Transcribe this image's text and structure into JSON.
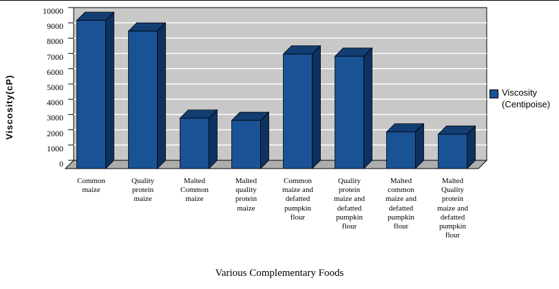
{
  "chart_data": {
    "type": "bar",
    "style": "3d-column",
    "title": "",
    "xlabel": "Various Complementary Foods",
    "ylabel": "Viscosity(cP)",
    "ylim": [
      0,
      10000
    ],
    "ytick_step": 1000,
    "yticks": [
      0,
      1000,
      2000,
      3000,
      4000,
      5000,
      6000,
      7000,
      8000,
      9000,
      10000
    ],
    "gridlines": true,
    "categories": [
      "Common maize",
      "Quality protein maize",
      "Malted Common maize",
      "Malted quality protein maize",
      "Common maize and defatted pumpkin flour",
      "Quality protein maize and defatted pumpkin flour",
      "Malted common maize and defatted pumpkin flour",
      "Malted Quality protein maize and defatted pumpkin flour"
    ],
    "category_label_lines": [
      [
        "Common",
        "maize"
      ],
      [
        "Quality",
        "protein",
        "maize"
      ],
      [
        "Malted",
        "Common",
        "maize"
      ],
      [
        "Malted",
        "quality",
        "protein",
        "maize"
      ],
      [
        "Common",
        "maize and",
        "defatted",
        "pumpkin",
        "flour"
      ],
      [
        "Quality",
        "protein",
        "maize and",
        "defatted",
        "pumpkin",
        "flour"
      ],
      [
        "Malted",
        "common",
        "maize and",
        "defatted",
        "pumpkin",
        "flour"
      ],
      [
        "Malted",
        "Quality",
        "protein",
        "maize and",
        "defatted",
        "pumpkin",
        "flour"
      ]
    ],
    "series": [
      {
        "name": "Viscosity (Centipoise)",
        "values": [
          9700,
          9000,
          3300,
          3150,
          7500,
          7350,
          2400,
          2250
        ]
      }
    ],
    "legend": {
      "position": "right",
      "entries": [
        {
          "label": "Viscosity (Centipoise)",
          "label_lines": [
            "Viscosity",
            "(Centipoise)"
          ],
          "color": "#1A5296"
        }
      ]
    },
    "colors": {
      "bar_front": "#1A5296",
      "bar_top": "#123E74",
      "bar_side": "#0E3260",
      "wall": "#C8C8C8",
      "floor": "#ADADAD",
      "gridline": "#FFFFFF",
      "axis_text": "#000000"
    }
  }
}
